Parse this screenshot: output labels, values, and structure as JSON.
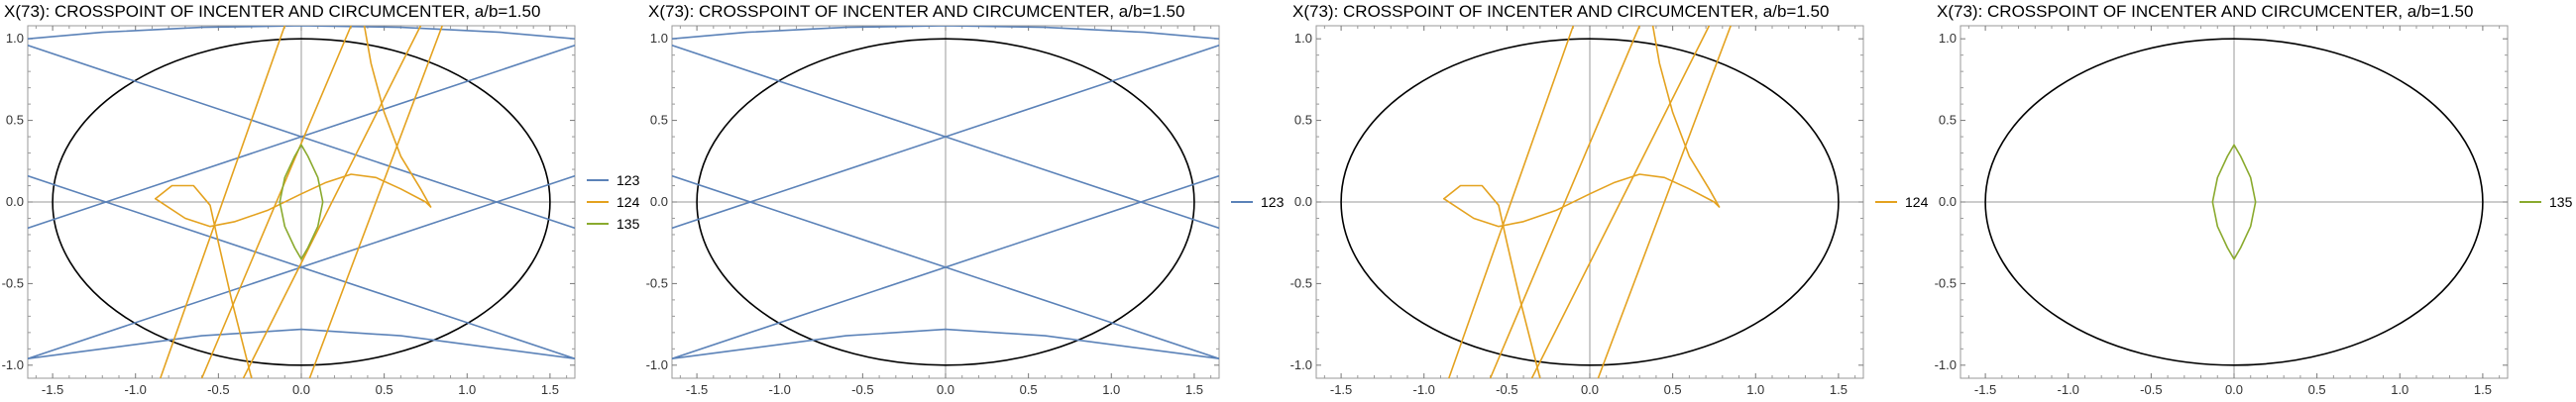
{
  "chart_data": [
    {
      "type": "line",
      "title": "X(73): CROSSPOINT OF INCENTER AND CIRCUMCENTER, a/b=1.50",
      "xlim": [
        -1.65,
        1.65
      ],
      "ylim": [
        -1.08,
        1.08
      ],
      "x_ticks": [
        -1.5,
        -1.0,
        -0.5,
        0.0,
        0.5,
        1.0,
        1.5
      ],
      "x_tick_labels": [
        "-1.5",
        "-1.0",
        "-0.5",
        "0.0",
        "0.5",
        "1.0",
        "1.5"
      ],
      "y_ticks": [
        -1.0,
        -0.5,
        0.0,
        0.5,
        1.0
      ],
      "y_tick_labels": [
        "-1.0",
        "-0.5",
        "0.0",
        "0.5",
        "1.0"
      ],
      "legend_position": "right",
      "legend": [
        {
          "name": "123",
          "color": "#5b82b8"
        },
        {
          "name": "124",
          "color": "#e4a21f"
        },
        {
          "name": "135",
          "color": "#8aaa2e"
        }
      ],
      "ellipse": {
        "a": 1.5,
        "b": 1.0,
        "color": "#000000"
      },
      "series": [
        {
          "name": "123",
          "color": "#5b82b8",
          "segments": [
            [
              [
                -1.65,
                0.96
              ],
              [
                1.65,
                -0.16
              ]
            ],
            [
              [
                -1.65,
                -0.96
              ],
              [
                1.65,
                0.16
              ]
            ],
            [
              [
                -1.65,
                0.16
              ],
              [
                1.65,
                -0.96
              ]
            ],
            [
              [
                -1.65,
                -0.16
              ],
              [
                1.65,
                0.96
              ]
            ],
            [
              [
                -1.65,
                -0.96
              ],
              [
                -1.2,
                -0.9
              ],
              [
                -0.6,
                -0.82
              ],
              [
                0,
                -0.78
              ],
              [
                0.6,
                -0.82
              ],
              [
                1.2,
                -0.9
              ],
              [
                1.65,
                -0.96
              ]
            ],
            [
              [
                -1.65,
                1.0
              ],
              [
                -1.2,
                1.04
              ],
              [
                -0.6,
                1.07
              ],
              [
                0,
                1.08
              ],
              [
                0.6,
                1.07
              ],
              [
                1.2,
                1.04
              ],
              [
                1.65,
                1.0
              ]
            ]
          ]
        },
        {
          "name": "124",
          "color": "#e4a21f",
          "segments": [
            [
              [
                -0.6,
                -1.08
              ],
              [
                0.3,
                1.08
              ]
            ],
            [
              [
                -0.35,
                -1.08
              ],
              [
                0.72,
                1.08
              ]
            ],
            [
              [
                -0.85,
                -1.08
              ],
              [
                -0.1,
                1.08
              ]
            ],
            [
              [
                0.05,
                -1.08
              ],
              [
                0.85,
                1.08
              ]
            ],
            [
              [
                -0.88,
                0.02
              ],
              [
                -0.78,
                0.1
              ],
              [
                -0.65,
                0.1
              ],
              [
                -0.55,
                -0.02
              ],
              [
                -0.5,
                -0.25
              ],
              [
                -0.42,
                -0.6
              ],
              [
                -0.3,
                -1.08
              ]
            ],
            [
              [
                -0.88,
                0.02
              ],
              [
                -0.7,
                -0.1
              ],
              [
                -0.55,
                -0.15
              ],
              [
                -0.4,
                -0.12
              ],
              [
                -0.2,
                -0.05
              ],
              [
                0,
                0.05
              ],
              [
                0.15,
                0.12
              ],
              [
                0.3,
                0.17
              ],
              [
                0.45,
                0.15
              ],
              [
                0.6,
                0.08
              ],
              [
                0.75,
                0.0
              ],
              [
                0.78,
                -0.03
              ]
            ],
            [
              [
                0.78,
                -0.03
              ],
              [
                0.72,
                0.08
              ],
              [
                0.6,
                0.28
              ],
              [
                0.5,
                0.55
              ],
              [
                0.42,
                0.85
              ],
              [
                0.38,
                1.08
              ]
            ]
          ]
        },
        {
          "name": "135",
          "color": "#8aaa2e",
          "segments": [
            [
              [
                0,
                0.35
              ],
              [
                0.04,
                0.28
              ],
              [
                0.1,
                0.15
              ],
              [
                0.13,
                0.0
              ],
              [
                0.1,
                -0.15
              ],
              [
                0.04,
                -0.28
              ],
              [
                0,
                -0.35
              ],
              [
                -0.04,
                -0.28
              ],
              [
                -0.1,
                -0.15
              ],
              [
                -0.13,
                0.0
              ],
              [
                -0.1,
                0.15
              ],
              [
                -0.04,
                0.28
              ],
              [
                0,
                0.35
              ]
            ]
          ]
        }
      ]
    },
    {
      "type": "line",
      "title": "X(73): CROSSPOINT OF INCENTER AND CIRCUMCENTER, a/b=1.50",
      "xlim": [
        -1.65,
        1.65
      ],
      "ylim": [
        -1.08,
        1.08
      ],
      "x_ticks": [
        -1.5,
        -1.0,
        -0.5,
        0.0,
        0.5,
        1.0,
        1.5
      ],
      "x_tick_labels": [
        "-1.5",
        "-1.0",
        "-0.5",
        "0.0",
        "0.5",
        "1.0",
        "1.5"
      ],
      "y_ticks": [
        -1.0,
        -0.5,
        0.0,
        0.5,
        1.0
      ],
      "y_tick_labels": [
        "-1.0",
        "-0.5",
        "0.0",
        "0.5",
        "1.0"
      ],
      "legend_position": "right",
      "legend": [
        {
          "name": "123",
          "color": "#5b82b8"
        }
      ],
      "ellipse": {
        "a": 1.5,
        "b": 1.0,
        "color": "#000000"
      },
      "series": [
        {
          "name": "123",
          "color": "#5b82b8",
          "segments": [
            [
              [
                -1.65,
                0.96
              ],
              [
                1.65,
                -0.16
              ]
            ],
            [
              [
                -1.65,
                -0.96
              ],
              [
                1.65,
                0.16
              ]
            ],
            [
              [
                -1.65,
                0.16
              ],
              [
                1.65,
                -0.96
              ]
            ],
            [
              [
                -1.65,
                -0.16
              ],
              [
                1.65,
                0.96
              ]
            ],
            [
              [
                -1.65,
                -0.96
              ],
              [
                -1.2,
                -0.9
              ],
              [
                -0.6,
                -0.82
              ],
              [
                0,
                -0.78
              ],
              [
                0.6,
                -0.82
              ],
              [
                1.2,
                -0.9
              ],
              [
                1.65,
                -0.96
              ]
            ],
            [
              [
                -1.65,
                1.0
              ],
              [
                -1.2,
                1.04
              ],
              [
                -0.6,
                1.07
              ],
              [
                0,
                1.08
              ],
              [
                0.6,
                1.07
              ],
              [
                1.2,
                1.04
              ],
              [
                1.65,
                1.0
              ]
            ]
          ]
        }
      ]
    },
    {
      "type": "line",
      "title": "X(73): CROSSPOINT OF INCENTER AND CIRCUMCENTER, a/b=1.50",
      "xlim": [
        -1.65,
        1.65
      ],
      "ylim": [
        -1.08,
        1.08
      ],
      "x_ticks": [
        -1.5,
        -1.0,
        -0.5,
        0.0,
        0.5,
        1.0,
        1.5
      ],
      "x_tick_labels": [
        "-1.5",
        "-1.0",
        "-0.5",
        "0.0",
        "0.5",
        "1.0",
        "1.5"
      ],
      "y_ticks": [
        -1.0,
        -0.5,
        0.0,
        0.5,
        1.0
      ],
      "y_tick_labels": [
        "-1.0",
        "-0.5",
        "0.0",
        "0.5",
        "1.0"
      ],
      "legend_position": "right",
      "legend": [
        {
          "name": "124",
          "color": "#e4a21f"
        }
      ],
      "ellipse": {
        "a": 1.5,
        "b": 1.0,
        "color": "#000000"
      },
      "series": [
        {
          "name": "124",
          "color": "#e4a21f",
          "segments": [
            [
              [
                -0.6,
                -1.08
              ],
              [
                0.3,
                1.08
              ]
            ],
            [
              [
                -0.35,
                -1.08
              ],
              [
                0.72,
                1.08
              ]
            ],
            [
              [
                -0.85,
                -1.08
              ],
              [
                -0.1,
                1.08
              ]
            ],
            [
              [
                0.05,
                -1.08
              ],
              [
                0.85,
                1.08
              ]
            ],
            [
              [
                -0.88,
                0.02
              ],
              [
                -0.78,
                0.1
              ],
              [
                -0.65,
                0.1
              ],
              [
                -0.55,
                -0.02
              ],
              [
                -0.5,
                -0.25
              ],
              [
                -0.42,
                -0.6
              ],
              [
                -0.3,
                -1.08
              ]
            ],
            [
              [
                -0.88,
                0.02
              ],
              [
                -0.7,
                -0.1
              ],
              [
                -0.55,
                -0.15
              ],
              [
                -0.4,
                -0.12
              ],
              [
                -0.2,
                -0.05
              ],
              [
                0,
                0.05
              ],
              [
                0.15,
                0.12
              ],
              [
                0.3,
                0.17
              ],
              [
                0.45,
                0.15
              ],
              [
                0.6,
                0.08
              ],
              [
                0.75,
                0.0
              ],
              [
                0.78,
                -0.03
              ]
            ],
            [
              [
                0.78,
                -0.03
              ],
              [
                0.72,
                0.08
              ],
              [
                0.6,
                0.28
              ],
              [
                0.5,
                0.55
              ],
              [
                0.42,
                0.85
              ],
              [
                0.38,
                1.08
              ]
            ]
          ]
        }
      ]
    },
    {
      "type": "line",
      "title": "X(73): CROSSPOINT OF INCENTER AND CIRCUMCENTER, a/b=1.50",
      "xlim": [
        -1.65,
        1.65
      ],
      "ylim": [
        -1.08,
        1.08
      ],
      "x_ticks": [
        -1.5,
        -1.0,
        -0.5,
        0.0,
        0.5,
        1.0,
        1.5
      ],
      "x_tick_labels": [
        "-1.5",
        "-1.0",
        "-0.5",
        "0.0",
        "0.5",
        "1.0",
        "1.5"
      ],
      "y_ticks": [
        -1.0,
        -0.5,
        0.0,
        0.5,
        1.0
      ],
      "y_tick_labels": [
        "-1.0",
        "-0.5",
        "0.0",
        "0.5",
        "1.0"
      ],
      "legend_position": "right",
      "legend": [
        {
          "name": "135",
          "color": "#8aaa2e"
        }
      ],
      "ellipse": {
        "a": 1.5,
        "b": 1.0,
        "color": "#000000"
      },
      "series": [
        {
          "name": "135",
          "color": "#8aaa2e",
          "segments": [
            [
              [
                0,
                0.35
              ],
              [
                0.04,
                0.28
              ],
              [
                0.1,
                0.15
              ],
              [
                0.13,
                0.0
              ],
              [
                0.1,
                -0.15
              ],
              [
                0.04,
                -0.28
              ],
              [
                0,
                -0.35
              ],
              [
                -0.04,
                -0.28
              ],
              [
                -0.1,
                -0.15
              ],
              [
                -0.13,
                0.0
              ],
              [
                -0.1,
                0.15
              ],
              [
                -0.04,
                0.28
              ],
              [
                0,
                0.35
              ]
            ]
          ]
        }
      ]
    }
  ]
}
